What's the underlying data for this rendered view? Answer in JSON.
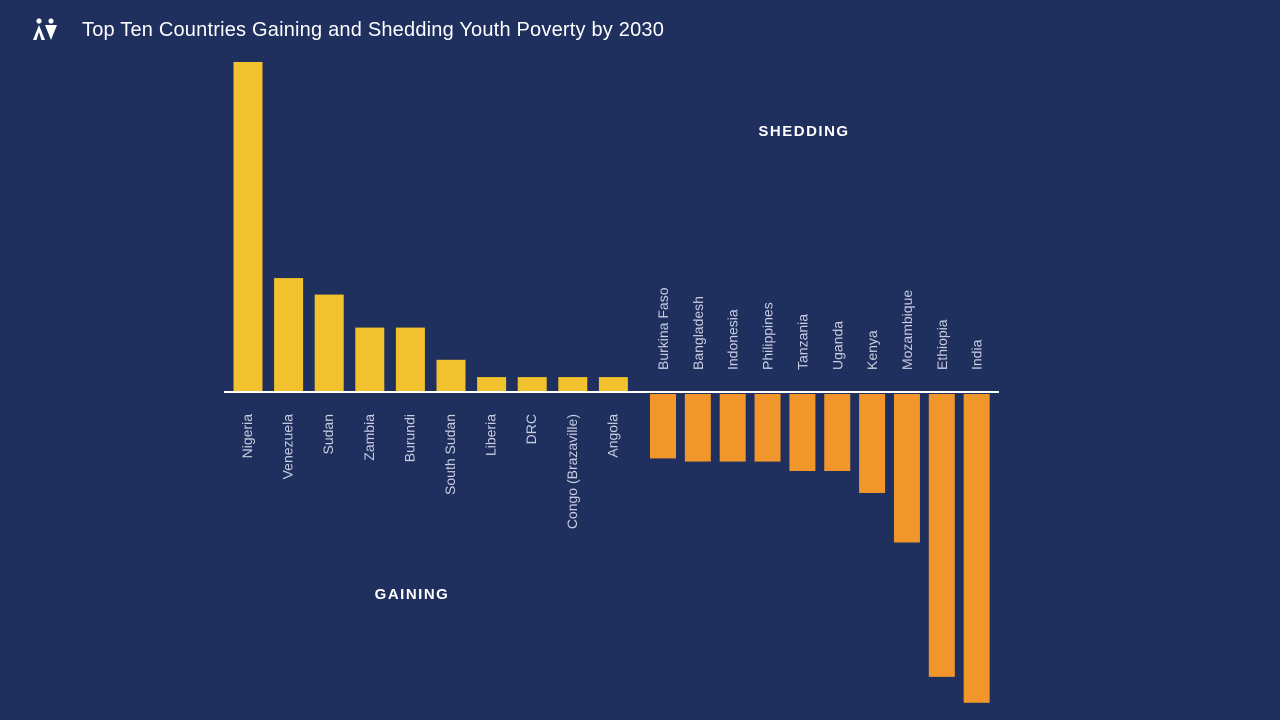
{
  "header": {
    "title": "Top Ten Countries Gaining and Shedding Youth Poverty by 2030",
    "logo_icon": "two-people-icon"
  },
  "colors": {
    "background": "#1f2f5e",
    "gaining": "#f2c12e",
    "shedding": "#f0962a",
    "baseline": "#ffffff",
    "label": "#c9cfe0"
  },
  "chart_data": {
    "type": "bar",
    "title": "Top Ten Countries Gaining and Shedding Youth Poverty by 2030",
    "xlabel": "",
    "ylabel": "",
    "grid": false,
    "ylim": [
      -3.9,
      4.2
    ],
    "series": [
      {
        "label": "GAINING",
        "categories": [
          "Nigeria",
          "Venezuela",
          "Sudan",
          "Zambia",
          "Burundi",
          "South Sudan",
          "Liberia",
          "DRC",
          "Congo (Brazaville)",
          "Angola"
        ],
        "values": [
          4.2,
          1.45,
          1.24,
          0.82,
          0.82,
          0.41,
          0.19,
          0.19,
          0.19,
          0.19
        ]
      },
      {
        "label": "SHEDDING",
        "categories": [
          "Burkina Faso",
          "Bangladesh",
          "Indonesia",
          "Philippines",
          "Tanzania",
          "Uganda",
          "Kenya",
          "Mozambique",
          "Ethiopia",
          "India"
        ],
        "values": [
          -0.82,
          -0.86,
          -0.86,
          -0.86,
          -0.98,
          -0.98,
          -1.26,
          -1.89,
          -3.6,
          -3.93
        ]
      }
    ]
  }
}
